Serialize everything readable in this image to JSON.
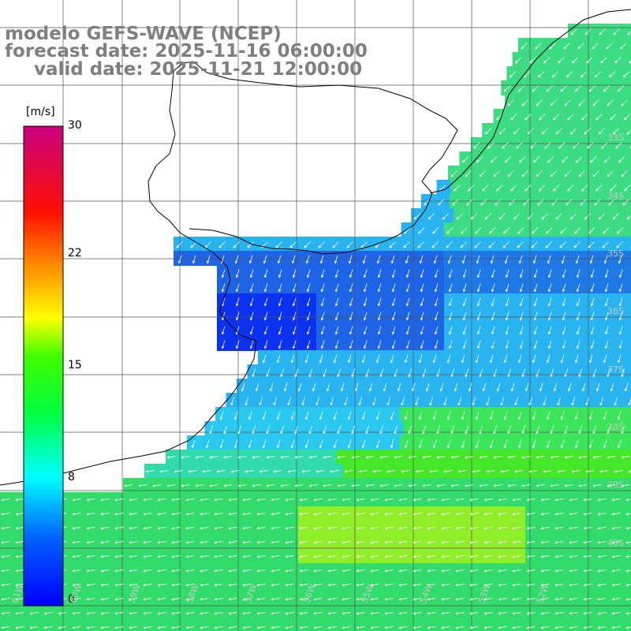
{
  "title": {
    "line1": "modelo GEFS-WAVE (NCEP)",
    "line2": "forecast date: 2025-11-16 06:00:00",
    "line3": "valid date: 2025-11-21 12:00:00"
  },
  "colorbar": {
    "unit": "[m/s]",
    "ticks": [
      "30",
      "22",
      "15",
      "8",
      "0"
    ],
    "tick_values": [
      30,
      22,
      15,
      8,
      0
    ],
    "colors": [
      "#0000ff",
      "#00bfff",
      "#00ffff",
      "#00ff00",
      "#ffff00",
      "#ff7f00",
      "#ff0000",
      "#c8007f"
    ]
  },
  "grid": {
    "lat_labels": [
      "33S",
      "34S",
      "35S",
      "36S",
      "37S",
      "38S",
      "39S",
      "40S"
    ],
    "lon_labels": [
      "61W",
      "60W",
      "59W",
      "58W",
      "57W",
      "56W",
      "55W",
      "54W",
      "53W",
      "52W"
    ]
  },
  "field": {
    "description_colors": {
      "low": "#1e50e6",
      "mid": "#28b4f0",
      "cyan": "#32e6e6",
      "green": "#32dc46",
      "yellow": "#b4f000"
    }
  }
}
